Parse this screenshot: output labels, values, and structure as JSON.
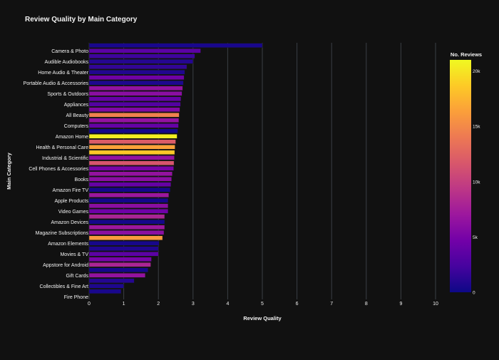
{
  "chart_data": {
    "type": "bar",
    "orientation": "horizontal",
    "title": "Review Quality by Main Category",
    "xlabel": "Review Quality",
    "ylabel": "Main Category",
    "xlim": [
      0,
      10
    ],
    "x_ticks": [
      "0",
      "1",
      "2",
      "3",
      "4",
      "5",
      "6",
      "7",
      "8",
      "9",
      "10"
    ],
    "grid": "vertical",
    "colorbar": {
      "title": "No. Reviews",
      "range": [
        0,
        21000
      ],
      "ticks": [
        {
          "value": 20000,
          "label": "20k"
        },
        {
          "value": 15000,
          "label": "15k"
        },
        {
          "value": 10000,
          "label": "10k"
        },
        {
          "value": 5000,
          "label": "5k"
        },
        {
          "value": 0,
          "label": "0"
        }
      ],
      "stops": [
        "#0d0887",
        "#46039f",
        "#7201a8",
        "#9c179e",
        "#bd3786",
        "#d8576b",
        "#ed7953",
        "#fb9f3a",
        "#fdca26",
        "#f0f921"
      ]
    },
    "bars": [
      {
        "value": 5.0,
        "reviews": 500,
        "label": ""
      },
      {
        "value": 3.22,
        "reviews": 3500,
        "label": "Camera & Photo"
      },
      {
        "value": 3.05,
        "reviews": 2000,
        "label": ""
      },
      {
        "value": 3.0,
        "reviews": 1000,
        "label": "Audible Audiobooks"
      },
      {
        "value": 2.82,
        "reviews": 1500,
        "label": ""
      },
      {
        "value": 2.76,
        "reviews": 800,
        "label": "Home Audio & Theater"
      },
      {
        "value": 2.74,
        "reviews": 4500,
        "label": ""
      },
      {
        "value": 2.72,
        "reviews": 700,
        "label": "Portable Audio & Accessories"
      },
      {
        "value": 2.7,
        "reviews": 6500,
        "label": ""
      },
      {
        "value": 2.68,
        "reviews": 6000,
        "label": "Sports & Outdoors"
      },
      {
        "value": 2.65,
        "reviews": 4000,
        "label": ""
      },
      {
        "value": 2.64,
        "reviews": 3000,
        "label": "Appliances"
      },
      {
        "value": 2.62,
        "reviews": 5500,
        "label": ""
      },
      {
        "value": 2.6,
        "reviews": 14500,
        "label": "All Beauty"
      },
      {
        "value": 2.59,
        "reviews": 6500,
        "label": ""
      },
      {
        "value": 2.58,
        "reviews": 4000,
        "label": "Computers"
      },
      {
        "value": 2.56,
        "reviews": 300,
        "label": ""
      },
      {
        "value": 2.54,
        "reviews": 20500,
        "label": "Amazon Home"
      },
      {
        "value": 2.5,
        "reviews": 12000,
        "label": ""
      },
      {
        "value": 2.48,
        "reviews": 16500,
        "label": "Health & Personal Care"
      },
      {
        "value": 2.47,
        "reviews": 18500,
        "label": ""
      },
      {
        "value": 2.46,
        "reviews": 6500,
        "label": "Industrial & Scientific"
      },
      {
        "value": 2.45,
        "reviews": 11500,
        "label": ""
      },
      {
        "value": 2.44,
        "reviews": 5000,
        "label": "Cell Phones & Accessories"
      },
      {
        "value": 2.4,
        "reviews": 6500,
        "label": ""
      },
      {
        "value": 2.38,
        "reviews": 6000,
        "label": "Books"
      },
      {
        "value": 2.36,
        "reviews": 4000,
        "label": ""
      },
      {
        "value": 2.34,
        "reviews": 300,
        "label": "Amazon Fire TV"
      },
      {
        "value": 2.3,
        "reviews": 7000,
        "label": ""
      },
      {
        "value": 2.28,
        "reviews": 300,
        "label": "Apple Products"
      },
      {
        "value": 2.28,
        "reviews": 6000,
        "label": ""
      },
      {
        "value": 2.28,
        "reviews": 4500,
        "label": "Video Games"
      },
      {
        "value": 2.18,
        "reviews": 8000,
        "label": ""
      },
      {
        "value": 2.18,
        "reviews": 300,
        "label": "Amazon Devices"
      },
      {
        "value": 2.18,
        "reviews": 7000,
        "label": ""
      },
      {
        "value": 2.16,
        "reviews": 6000,
        "label": "Magazine Subscriptions"
      },
      {
        "value": 2.12,
        "reviews": 16000,
        "label": ""
      },
      {
        "value": 2.02,
        "reviews": 400,
        "label": "Amazon Elements"
      },
      {
        "value": 2.0,
        "reviews": 800,
        "label": ""
      },
      {
        "value": 2.0,
        "reviews": 3500,
        "label": "Movies & TV"
      },
      {
        "value": 1.8,
        "reviews": 5000,
        "label": ""
      },
      {
        "value": 1.78,
        "reviews": 8000,
        "label": "Appstore for Android"
      },
      {
        "value": 1.7,
        "reviews": 300,
        "label": ""
      },
      {
        "value": 1.62,
        "reviews": 6500,
        "label": "Gift Cards"
      },
      {
        "value": 1.3,
        "reviews": 1000,
        "label": ""
      },
      {
        "value": 1.0,
        "reviews": 700,
        "label": "Collectibles & Fine Art"
      },
      {
        "value": 0.92,
        "reviews": 500,
        "label": ""
      },
      {
        "value": 0.0,
        "reviews": 0,
        "label": "Fire Phone"
      }
    ]
  }
}
